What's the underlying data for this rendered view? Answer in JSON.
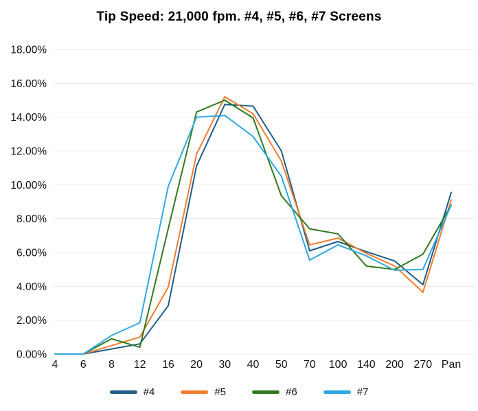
{
  "chart_data": {
    "type": "line",
    "title": "Tip Speed: 21,000 fpm. #4, #5, #6, #7 Screens",
    "xlabel": "",
    "ylabel": "",
    "categories": [
      "4",
      "6",
      "8",
      "12",
      "16",
      "20",
      "30",
      "40",
      "50",
      "70",
      "100",
      "140",
      "200",
      "270",
      "Pan"
    ],
    "series": [
      {
        "name": "#4",
        "color": "#1F5C8A",
        "values": [
          0.0,
          0.0,
          0.3,
          0.6,
          2.85,
          11.1,
          14.75,
          14.65,
          12.0,
          6.1,
          6.65,
          6.05,
          5.5,
          4.1,
          9.55
        ]
      },
      {
        "name": "#5",
        "color": "#EF7D2E",
        "values": [
          0.0,
          0.0,
          0.5,
          1.0,
          3.95,
          11.8,
          15.2,
          14.2,
          11.4,
          6.45,
          6.85,
          5.95,
          5.2,
          3.65,
          9.1
        ]
      },
      {
        "name": "#6",
        "color": "#31791F",
        "values": [
          0.0,
          0.0,
          0.9,
          0.4,
          7.4,
          14.3,
          15.0,
          13.95,
          9.35,
          7.4,
          7.1,
          5.2,
          5.0,
          5.9,
          8.8
        ]
      },
      {
        "name": "#7",
        "color": "#2FA8E0",
        "values": [
          0.0,
          0.0,
          1.1,
          1.85,
          9.9,
          14.0,
          14.1,
          12.85,
          10.5,
          5.55,
          6.45,
          5.8,
          4.95,
          5.0,
          8.8
        ]
      }
    ],
    "ylim": [
      0,
      18
    ],
    "ytick_step": 2,
    "ytick_labels": [
      "0.00%",
      "2.00%",
      "4.00%",
      "6.00%",
      "8.00%",
      "10.00%",
      "12.00%",
      "14.00%",
      "16.00%",
      "18.00%"
    ],
    "grid": "horizontal",
    "gridline_color": "#E8E8E8",
    "text_color": "#111111",
    "legend_position": "bottom"
  }
}
